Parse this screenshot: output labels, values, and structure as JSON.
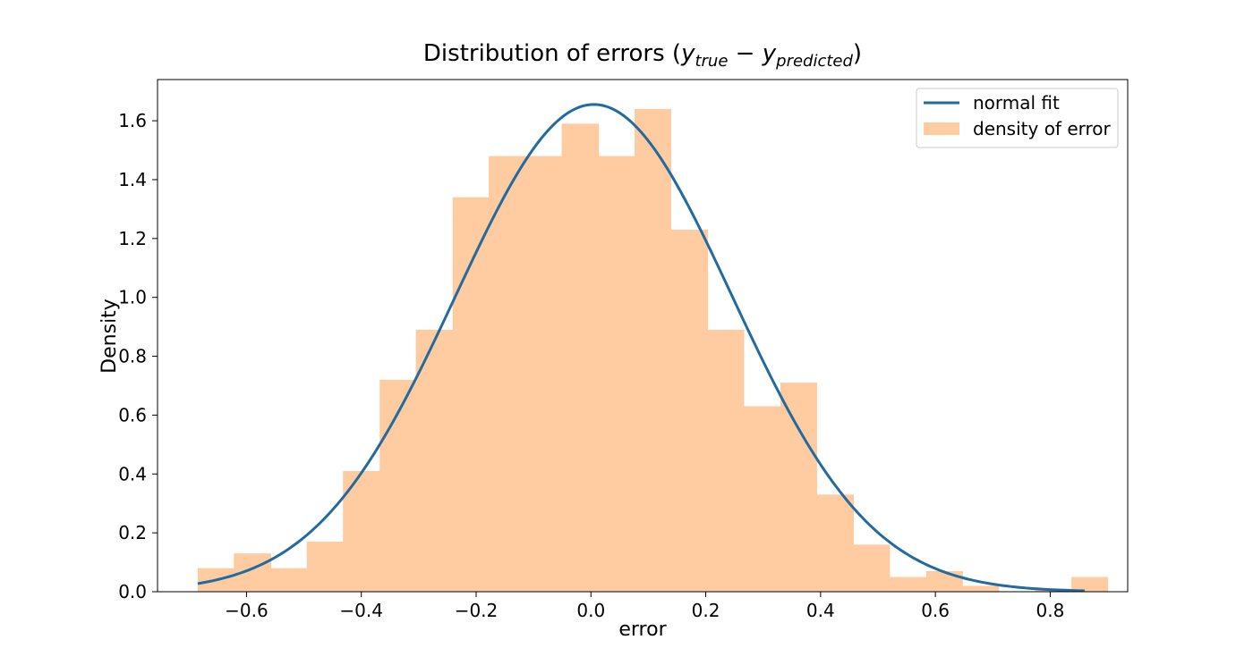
{
  "chart_data": {
    "type": "bar",
    "title_main": "Distribution of errors (",
    "title_y": "y",
    "title_sub1": "true",
    "title_minus": " − ",
    "title_sub2": "predicted",
    "title_close": ")",
    "xlabel": "error",
    "ylabel": "Density",
    "xlim": [
      -0.755,
      0.935
    ],
    "ylim": [
      0,
      1.74
    ],
    "xticks": [
      -0.6,
      -0.4,
      -0.2,
      0.0,
      0.2,
      0.4,
      0.6,
      0.8
    ],
    "xtick_labels": [
      "−0.6",
      "−0.4",
      "−0.2",
      "0.0",
      "0.2",
      "0.4",
      "0.6",
      "0.8"
    ],
    "yticks": [
      0.0,
      0.2,
      0.4,
      0.6,
      0.8,
      1.0,
      1.2,
      1.4,
      1.6
    ],
    "ytick_labels": [
      "0.0",
      "0.2",
      "0.4",
      "0.6",
      "0.8",
      "1.0",
      "1.2",
      "1.4",
      "1.6"
    ],
    "histogram": {
      "name": "density of error",
      "color": "#ffcba0",
      "bin_edges": [
        -0.685,
        -0.622,
        -0.558,
        -0.495,
        -0.432,
        -0.368,
        -0.305,
        -0.241,
        -0.178,
        -0.114,
        -0.051,
        0.013,
        0.076,
        0.139,
        0.203,
        0.266,
        0.33,
        0.393,
        0.457,
        0.52,
        0.584,
        0.647,
        0.71,
        0.774,
        0.837,
        0.9
      ],
      "values": [
        0.08,
        0.13,
        0.08,
        0.17,
        0.41,
        0.72,
        0.89,
        1.34,
        1.48,
        1.48,
        1.59,
        1.48,
        1.64,
        1.23,
        0.89,
        0.63,
        0.71,
        0.33,
        0.16,
        0.05,
        0.07,
        0.02,
        0.0,
        0.01,
        0.05
      ]
    },
    "normal_fit": {
      "name": "normal fit",
      "color": "#236a9e",
      "mean": 0.005,
      "std": 0.241,
      "x_range": [
        -0.685,
        0.86
      ]
    },
    "legend_position": "top-right"
  }
}
